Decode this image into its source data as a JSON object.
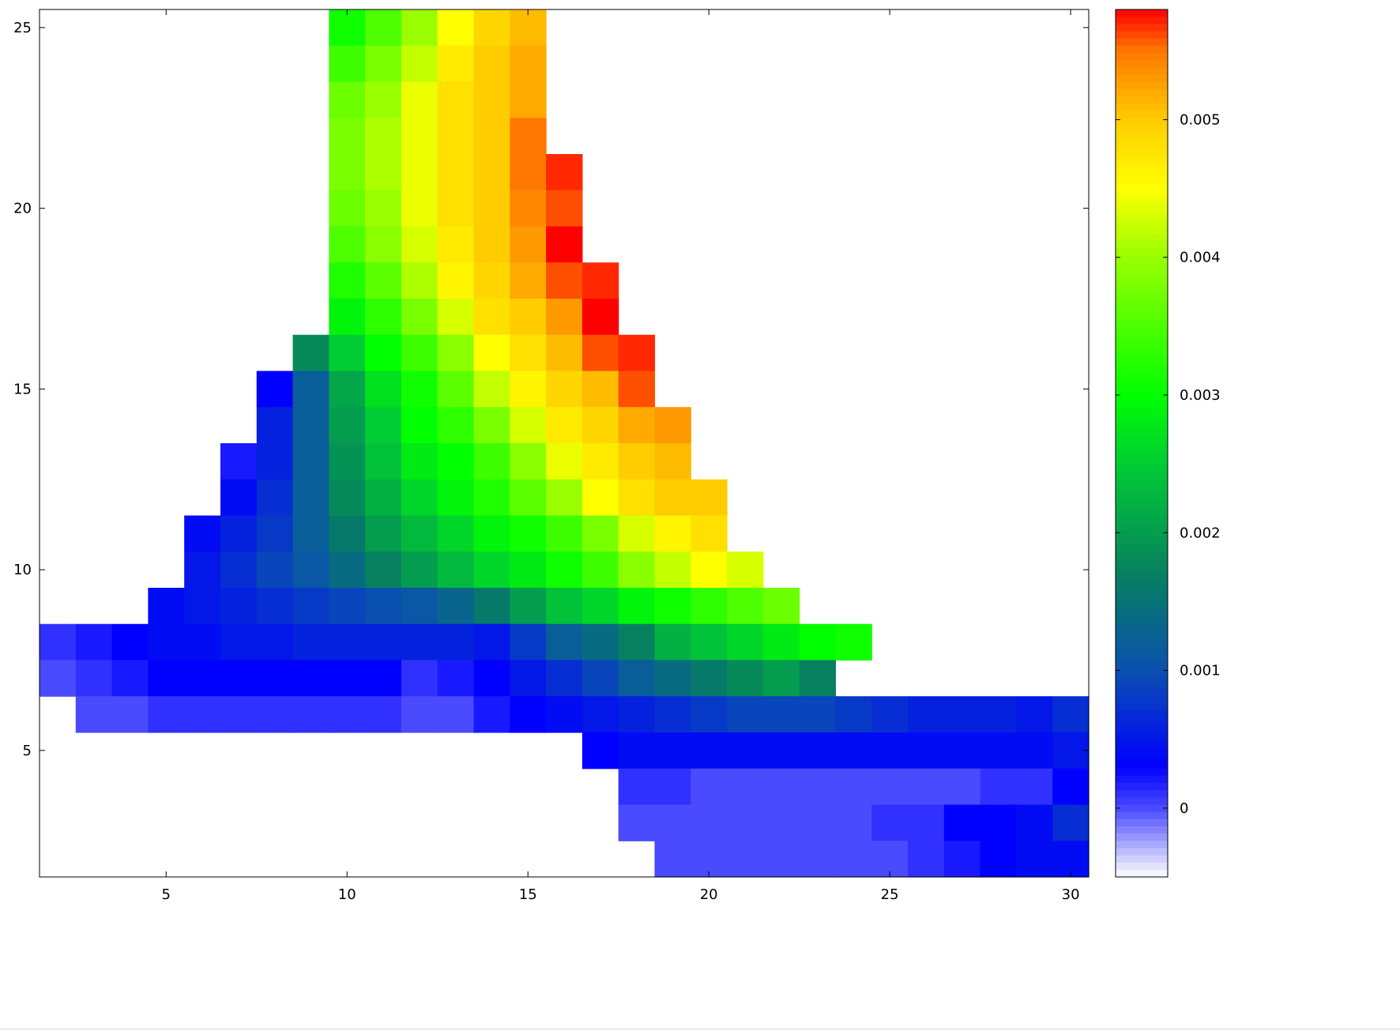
{
  "chart_data": {
    "type": "heatmap",
    "title": "",
    "xlabel": "",
    "ylabel": "",
    "xlim": [
      1.5,
      30.5
    ],
    "ylim": [
      1.5,
      25.5
    ],
    "x_ticks": [
      5,
      10,
      15,
      20,
      25,
      30
    ],
    "y_ticks": [
      5,
      10,
      15,
      20,
      25
    ],
    "colorbar": {
      "range": [
        -0.0005,
        0.0058
      ],
      "ticks": [
        0,
        0.001,
        0.002,
        0.003,
        0.004,
        0.005
      ],
      "tick_labels": [
        "0",
        "0.001",
        "0.002",
        "0.003",
        "0.004",
        "0.005"
      ],
      "palette": [
        {
          "v": -0.0005,
          "color": "#ffffff"
        },
        {
          "v": 0.0,
          "color": "#4a4aff"
        },
        {
          "v": 0.0003,
          "color": "#0000ff"
        },
        {
          "v": 0.001,
          "color": "#0a50b0"
        },
        {
          "v": 0.0017,
          "color": "#078060"
        },
        {
          "v": 0.0025,
          "color": "#00cc33"
        },
        {
          "v": 0.003,
          "color": "#00ff00"
        },
        {
          "v": 0.004,
          "color": "#99ff00"
        },
        {
          "v": 0.0045,
          "color": "#ffff00"
        },
        {
          "v": 0.005,
          "color": "#ffcc00"
        },
        {
          "v": 0.0055,
          "color": "#ff7700"
        },
        {
          "v": 0.0058,
          "color": "#ff0000"
        }
      ]
    },
    "rows": [
      {
        "y": 25,
        "x_start": 10,
        "values": [
          0.0031,
          0.0035,
          0.004,
          0.0045,
          0.0049,
          0.0051
        ]
      },
      {
        "y": 24,
        "x_start": 10,
        "values": [
          0.0034,
          0.0038,
          0.0042,
          0.0047,
          0.005,
          0.0052
        ]
      },
      {
        "y": 23,
        "x_start": 10,
        "values": [
          0.0037,
          0.004,
          0.0044,
          0.0048,
          0.005,
          0.0052
        ]
      },
      {
        "y": 22,
        "x_start": 10,
        "values": [
          0.0038,
          0.0041,
          0.0044,
          0.0048,
          0.005,
          0.0055
        ]
      },
      {
        "y": 21,
        "x_start": 10,
        "values": [
          0.0038,
          0.0041,
          0.0044,
          0.0048,
          0.005,
          0.0055,
          0.0057
        ]
      },
      {
        "y": 20,
        "x_start": 10,
        "values": [
          0.0037,
          0.004,
          0.0044,
          0.0048,
          0.005,
          0.0054,
          0.0056
        ]
      },
      {
        "y": 19,
        "x_start": 10,
        "values": [
          0.0035,
          0.0039,
          0.0043,
          0.0047,
          0.005,
          0.0053,
          0.0058
        ]
      },
      {
        "y": 18,
        "x_start": 10,
        "values": [
          0.0032,
          0.0036,
          0.0041,
          0.0046,
          0.0049,
          0.0052,
          0.0056,
          0.0057
        ]
      },
      {
        "y": 17,
        "x_start": 10,
        "values": [
          0.0029,
          0.0033,
          0.0038,
          0.0043,
          0.0048,
          0.005,
          0.0053,
          0.0058
        ]
      },
      {
        "y": 16,
        "x_start": 9,
        "values": [
          0.0018,
          0.0025,
          0.003,
          0.0034,
          0.0039,
          0.0045,
          0.0048,
          0.0051,
          0.0056,
          0.0057
        ]
      },
      {
        "y": 15,
        "x_start": 8,
        "values": [
          0.0003,
          0.0012,
          0.0021,
          0.0027,
          0.0031,
          0.0036,
          0.0042,
          0.0046,
          0.0049,
          0.0051,
          0.0056
        ]
      },
      {
        "y": 14,
        "x_start": 8,
        "values": [
          0.0006,
          0.0012,
          0.002,
          0.0025,
          0.003,
          0.0033,
          0.0038,
          0.0043,
          0.0047,
          0.0049,
          0.0052,
          0.0053
        ]
      },
      {
        "y": 13,
        "x_start": 7,
        "values": [
          0.0002,
          0.0006,
          0.0012,
          0.0019,
          0.0024,
          0.0028,
          0.003,
          0.0034,
          0.0039,
          0.0044,
          0.0047,
          0.005,
          0.0051
        ]
      },
      {
        "y": 12,
        "x_start": 7,
        "values": [
          0.0004,
          0.0007,
          0.0012,
          0.0018,
          0.0022,
          0.0026,
          0.0029,
          0.0032,
          0.0036,
          0.004,
          0.0045,
          0.0048,
          0.005,
          0.005
        ]
      },
      {
        "y": 11,
        "x_start": 6,
        "values": [
          0.0004,
          0.0006,
          0.0008,
          0.0012,
          0.0016,
          0.002,
          0.0023,
          0.0026,
          0.0029,
          0.0031,
          0.0034,
          0.0038,
          0.0043,
          0.0046,
          0.0048
        ]
      },
      {
        "y": 10,
        "x_start": 6,
        "values": [
          0.0005,
          0.0007,
          0.0009,
          0.0011,
          0.0014,
          0.0017,
          0.002,
          0.0023,
          0.0026,
          0.0028,
          0.0031,
          0.0034,
          0.0039,
          0.0042,
          0.0045,
          0.0043
        ]
      },
      {
        "y": 9,
        "x_start": 5,
        "values": [
          0.0004,
          0.0005,
          0.0006,
          0.0007,
          0.0008,
          0.0009,
          0.001,
          0.0011,
          0.0013,
          0.0016,
          0.002,
          0.0024,
          0.0026,
          0.0029,
          0.0031,
          0.0033,
          0.0035,
          0.0037
        ]
      },
      {
        "y": 8,
        "x_start": 2,
        "values": [
          0.0001,
          0.0002,
          0.0003,
          0.0004,
          0.0004,
          0.0005,
          0.0005,
          0.0006,
          0.0006,
          0.0006,
          0.0006,
          0.0006,
          0.0005,
          0.0008,
          0.0012,
          0.0014,
          0.0017,
          0.0022,
          0.0024,
          0.0026,
          0.0028,
          0.003,
          0.0031
        ]
      },
      {
        "y": 7,
        "x_start": 2,
        "values": [
          0.0,
          0.0001,
          0.0002,
          0.0003,
          0.0003,
          0.0003,
          0.0003,
          0.0003,
          0.0003,
          0.0003,
          0.0001,
          0.0002,
          0.0003,
          0.0005,
          0.0007,
          0.0009,
          0.0012,
          0.0014,
          0.0016,
          0.0018,
          0.002,
          0.0017
        ]
      },
      {
        "y": 6,
        "x_start": 3,
        "values": [
          0.0,
          0.0,
          0.0001,
          0.0001,
          0.0001,
          0.0001,
          0.0001,
          0.0001,
          0.0001,
          0.0,
          0.0,
          0.0002,
          0.0003,
          0.0004,
          0.0005,
          0.0006,
          0.0007,
          0.0008,
          0.0009,
          0.0009,
          0.0009,
          0.0008,
          0.0007,
          0.0006,
          0.0006,
          0.0006,
          0.0005,
          0.0007,
          0.0009
        ]
      },
      {
        "y": 5,
        "x_start": 17,
        "values": [
          0.0003,
          0.0004,
          0.0004,
          0.0004,
          0.0004,
          0.0004,
          0.0004,
          0.0004,
          0.0004,
          0.0004,
          0.0004,
          0.0004,
          0.0004,
          0.0005,
          0.0004
        ]
      },
      {
        "y": 4,
        "x_start": 18,
        "values": [
          0.0001,
          0.0001,
          0.0,
          0.0,
          0.0,
          0.0,
          0.0,
          0.0,
          0.0,
          0.0,
          0.0001,
          0.0001,
          0.0003,
          0.0004
        ]
      },
      {
        "y": 3,
        "x_start": 18,
        "values": [
          0.0,
          0.0,
          0.0,
          0.0,
          0.0,
          0.0,
          0.0,
          0.0001,
          0.0001,
          0.0003,
          0.0003,
          0.0004,
          0.0007,
          0.0008
        ]
      },
      {
        "y": 2,
        "x_start": 19,
        "values": [
          0.0,
          0.0,
          0.0,
          0.0,
          0.0,
          0.0,
          0.0,
          0.0001,
          0.0002,
          0.0003,
          0.0004,
          0.0004
        ]
      }
    ]
  }
}
